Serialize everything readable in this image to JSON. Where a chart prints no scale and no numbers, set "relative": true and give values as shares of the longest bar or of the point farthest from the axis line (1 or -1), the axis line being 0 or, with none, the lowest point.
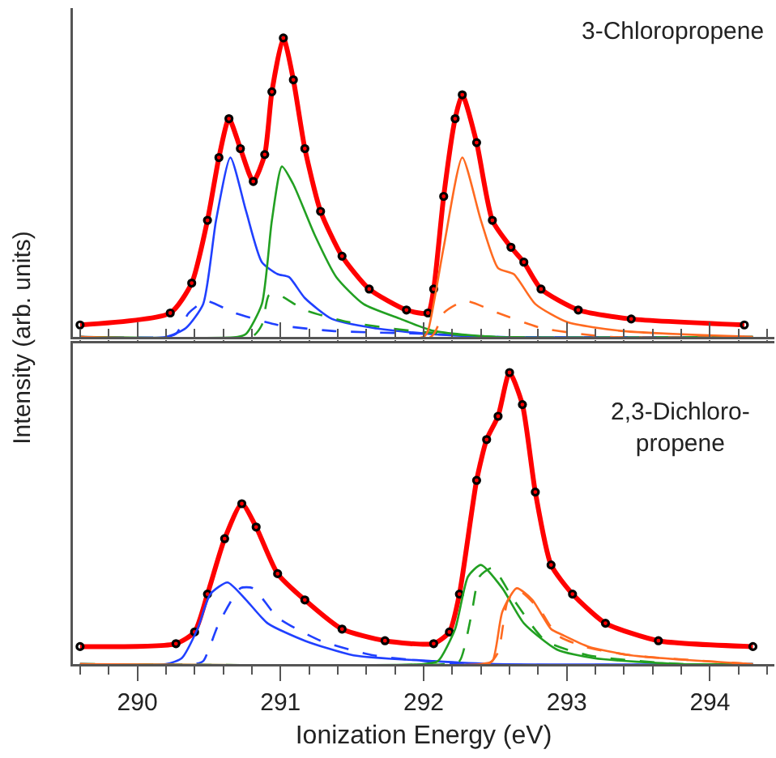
{
  "chart_data": [
    {
      "type": "line",
      "relative": true,
      "ylabel": "Intensity (arb. units)",
      "annotations": [
        "3-Chloropropene"
      ],
      "tick_labels": false,
      "xlim": [
        289.55,
        294.45
      ],
      "xticks": [
        {
          "value": 289.6,
          "label": null
        },
        {
          "value": 289.8,
          "label": null
        },
        290,
        {
          "value": 290.2,
          "label": null
        },
        {
          "value": 290.4,
          "label": null
        },
        {
          "value": 290.6,
          "label": null
        },
        {
          "value": 290.8,
          "label": null
        },
        291,
        {
          "value": 291.2,
          "label": null
        },
        {
          "value": 291.4,
          "label": null
        },
        {
          "value": 291.6,
          "label": null
        },
        {
          "value": 291.8,
          "label": null
        },
        292,
        {
          "value": 292.2,
          "label": null
        },
        {
          "value": 292.4,
          "label": null
        },
        {
          "value": 292.6,
          "label": null
        },
        {
          "value": 292.8,
          "label": null
        },
        293,
        {
          "value": 293.2,
          "label": null
        },
        {
          "value": 293.4,
          "label": null
        },
        {
          "value": 293.6,
          "label": null
        },
        {
          "value": 293.8,
          "label": null
        },
        294,
        {
          "value": 294.2,
          "label": null
        },
        {
          "value": 294.4,
          "label": null
        }
      ],
      "series": [
        {
          "type": "line",
          "color": "#ff0000",
          "line_style": "solid",
          "x": [
            289.6,
            290.23,
            290.38,
            290.49,
            290.57,
            290.64,
            290.72,
            290.81,
            290.89,
            290.94,
            291.02,
            291.09,
            291.17,
            291.28,
            291.43,
            291.62,
            291.88,
            292.03,
            292.07,
            292.14,
            292.22,
            292.27,
            292.37,
            292.48,
            292.61,
            292.7,
            292.82,
            293.08,
            293.45,
            294.24
          ],
          "values": [
            0.04,
            0.08,
            0.18,
            0.39,
            0.6,
            0.73,
            0.63,
            0.52,
            0.61,
            0.82,
            1.0,
            0.86,
            0.63,
            0.42,
            0.27,
            0.16,
            0.09,
            0.08,
            0.16,
            0.47,
            0.73,
            0.81,
            0.65,
            0.39,
            0.3,
            0.25,
            0.16,
            0.09,
            0.06,
            0.04
          ]
        },
        {
          "type": "scatter",
          "marker": "circle",
          "color": "#000000",
          "x": [
            289.6,
            290.23,
            290.38,
            290.49,
            290.57,
            290.64,
            290.72,
            290.81,
            290.89,
            290.94,
            291.02,
            291.09,
            291.17,
            291.28,
            291.43,
            291.62,
            291.88,
            292.03,
            292.07,
            292.14,
            292.22,
            292.27,
            292.37,
            292.48,
            292.61,
            292.7,
            292.82,
            293.08,
            293.45,
            294.24
          ],
          "values": [
            0.04,
            0.08,
            0.18,
            0.39,
            0.6,
            0.73,
            0.63,
            0.52,
            0.61,
            0.82,
            1.0,
            0.86,
            0.63,
            0.42,
            0.27,
            0.16,
            0.09,
            0.08,
            0.16,
            0.47,
            0.73,
            0.81,
            0.65,
            0.39,
            0.3,
            0.25,
            0.16,
            0.09,
            0.06,
            0.04
          ]
        },
        {
          "type": "line",
          "color": "#2040ff",
          "line_style": "solid",
          "x": [
            289.6,
            290.2,
            290.34,
            290.46,
            290.55,
            290.65,
            290.76,
            290.87,
            290.98,
            291.06,
            291.17,
            291.36,
            291.65,
            292.03,
            292.5,
            294.3
          ],
          "values": [
            0,
            0,
            0.03,
            0.11,
            0.39,
            0.6,
            0.42,
            0.25,
            0.21,
            0.2,
            0.13,
            0.06,
            0.03,
            0.01,
            0,
            0
          ]
        },
        {
          "type": "line",
          "color": "#2040ff",
          "line_style": "dashed",
          "x": [
            289.6,
            290.2,
            290.27,
            290.36,
            290.48,
            290.68,
            290.98,
            291.36,
            292.03,
            292.5,
            294.3
          ],
          "values": [
            0,
            0,
            0.01,
            0.08,
            0.12,
            0.08,
            0.04,
            0.02,
            0.01,
            0,
            0
          ]
        },
        {
          "type": "line",
          "color": "#22a022",
          "line_style": "solid",
          "x": [
            289.6,
            290.7,
            290.76,
            290.87,
            290.94,
            291.01,
            291.09,
            291.24,
            291.39,
            291.58,
            291.84,
            292.07,
            292.5,
            294.3
          ],
          "values": [
            0,
            0,
            0.01,
            0.11,
            0.39,
            0.57,
            0.51,
            0.34,
            0.2,
            0.11,
            0.06,
            0.02,
            0,
            0
          ]
        },
        {
          "type": "line",
          "color": "#22a022",
          "line_style": "dashed",
          "x": [
            289.6,
            290.8,
            290.87,
            290.92,
            290.99,
            291.17,
            291.47,
            291.92,
            292.5,
            294.3
          ],
          "values": [
            0,
            0,
            0.04,
            0.14,
            0.14,
            0.09,
            0.05,
            0.02,
            0,
            0
          ]
        },
        {
          "type": "line",
          "color": "#ff6a20",
          "line_style": "solid",
          "x": [
            289.6,
            292.0,
            292.03,
            292.14,
            292.27,
            292.4,
            292.52,
            292.63,
            292.78,
            293.0,
            293.38,
            294.3
          ],
          "values": [
            0,
            0,
            0.02,
            0.3,
            0.6,
            0.39,
            0.23,
            0.21,
            0.11,
            0.05,
            0.02,
            0
          ]
        },
        {
          "type": "line",
          "color": "#ff6a20",
          "line_style": "dashed",
          "x": [
            289.6,
            292.05,
            292.14,
            292.29,
            292.52,
            292.82,
            293.3,
            294.3
          ],
          "values": [
            0,
            0,
            0.08,
            0.12,
            0.08,
            0.03,
            0,
            0
          ]
        }
      ]
    },
    {
      "type": "line",
      "relative": true,
      "xlabel": "Ionization Energy (eV)",
      "annotations": [
        "2,3-Dichloro-\npropene"
      ],
      "tick_labels": "x",
      "xlim": [
        289.55,
        294.45
      ],
      "xticks": [
        {
          "value": 289.6,
          "label": null
        },
        {
          "value": 289.8,
          "label": null
        },
        290,
        {
          "value": 290.2,
          "label": null
        },
        {
          "value": 290.4,
          "label": null
        },
        {
          "value": 290.6,
          "label": null
        },
        {
          "value": 290.8,
          "label": null
        },
        291,
        {
          "value": 291.2,
          "label": null
        },
        {
          "value": 291.4,
          "label": null
        },
        {
          "value": 291.6,
          "label": null
        },
        {
          "value": 291.8,
          "label": null
        },
        292,
        {
          "value": 292.2,
          "label": null
        },
        {
          "value": 292.4,
          "label": null
        },
        {
          "value": 292.6,
          "label": null
        },
        {
          "value": 292.8,
          "label": null
        },
        293,
        {
          "value": 293.2,
          "label": null
        },
        {
          "value": 293.4,
          "label": null
        },
        {
          "value": 293.6,
          "label": null
        },
        {
          "value": 293.8,
          "label": null
        },
        294,
        {
          "value": 294.2,
          "label": null
        },
        {
          "value": 294.4,
          "label": null
        }
      ],
      "series": [
        {
          "type": "line",
          "color": "#ff0000",
          "line_style": "solid",
          "x": [
            289.6,
            290.27,
            290.4,
            290.49,
            290.61,
            290.73,
            290.83,
            290.98,
            291.17,
            291.43,
            291.73,
            292.07,
            292.18,
            292.25,
            292.37,
            292.44,
            292.52,
            292.6,
            292.69,
            292.78,
            292.89,
            293.04,
            293.27,
            293.64,
            294.3
          ],
          "values": [
            0.06,
            0.07,
            0.11,
            0.24,
            0.43,
            0.55,
            0.47,
            0.31,
            0.22,
            0.12,
            0.08,
            0.07,
            0.11,
            0.24,
            0.63,
            0.77,
            0.85,
            1.0,
            0.89,
            0.59,
            0.34,
            0.24,
            0.14,
            0.08,
            0.06
          ]
        },
        {
          "type": "scatter",
          "marker": "circle",
          "color": "#000000",
          "x": [
            289.6,
            290.27,
            290.4,
            290.49,
            290.61,
            290.73,
            290.83,
            290.98,
            291.17,
            291.43,
            291.73,
            292.07,
            292.18,
            292.25,
            292.37,
            292.44,
            292.52,
            292.6,
            292.69,
            292.78,
            292.89,
            293.04,
            293.27,
            293.64,
            294.3
          ],
          "values": [
            0.06,
            0.07,
            0.11,
            0.24,
            0.43,
            0.55,
            0.47,
            0.31,
            0.22,
            0.12,
            0.08,
            0.07,
            0.11,
            0.24,
            0.63,
            0.77,
            0.85,
            1.0,
            0.89,
            0.59,
            0.34,
            0.24,
            0.14,
            0.08,
            0.06
          ]
        },
        {
          "type": "line",
          "color": "#2040ff",
          "line_style": "solid",
          "x": [
            289.6,
            290.2,
            290.31,
            290.42,
            290.51,
            290.63,
            290.76,
            290.91,
            291.17,
            291.51,
            292.07,
            292.5,
            294.3
          ],
          "values": [
            0,
            0,
            0.02,
            0.12,
            0.24,
            0.28,
            0.22,
            0.14,
            0.08,
            0.03,
            0.01,
            0,
            0
          ]
        },
        {
          "type": "line",
          "color": "#2040ff",
          "line_style": "dashed",
          "x": [
            289.6,
            290.4,
            290.46,
            290.57,
            290.72,
            290.81,
            290.98,
            291.28,
            291.65,
            292.3,
            294.3
          ],
          "values": [
            0,
            0,
            0.01,
            0.14,
            0.26,
            0.26,
            0.16,
            0.08,
            0.03,
            0,
            0
          ]
        },
        {
          "type": "line",
          "color": "#22a022",
          "line_style": "solid",
          "x": [
            289.6,
            292.0,
            292.1,
            292.22,
            292.31,
            292.4,
            292.55,
            292.7,
            292.93,
            293.19,
            293.8,
            294.3
          ],
          "values": [
            0,
            0,
            0.01,
            0.12,
            0.3,
            0.34,
            0.26,
            0.14,
            0.05,
            0.02,
            0,
            0
          ]
        },
        {
          "type": "line",
          "color": "#22a022",
          "line_style": "dashed",
          "x": [
            289.6,
            292.15,
            292.25,
            292.33,
            292.39,
            292.48,
            292.63,
            292.85,
            293.15,
            293.8,
            294.3
          ],
          "values": [
            0,
            0,
            0.01,
            0.16,
            0.3,
            0.33,
            0.22,
            0.08,
            0.03,
            0,
            0
          ]
        },
        {
          "type": "line",
          "color": "#ff6a20",
          "line_style": "solid",
          "x": [
            289.6,
            292.4,
            292.48,
            292.55,
            292.65,
            292.76,
            292.89,
            292.97,
            293.15,
            293.45,
            294.3
          ],
          "values": [
            0,
            0,
            0.01,
            0.18,
            0.26,
            0.22,
            0.12,
            0.1,
            0.06,
            0.03,
            0
          ]
        },
        {
          "type": "line",
          "color": "#ff6a20",
          "line_style": "dashed",
          "x": [
            289.6,
            292.45,
            292.52,
            292.59,
            292.67,
            292.82,
            292.93,
            293.12,
            293.45,
            294.3
          ],
          "values": [
            0,
            0,
            0.04,
            0.22,
            0.25,
            0.18,
            0.1,
            0.06,
            0.03,
            0
          ]
        }
      ]
    }
  ]
}
